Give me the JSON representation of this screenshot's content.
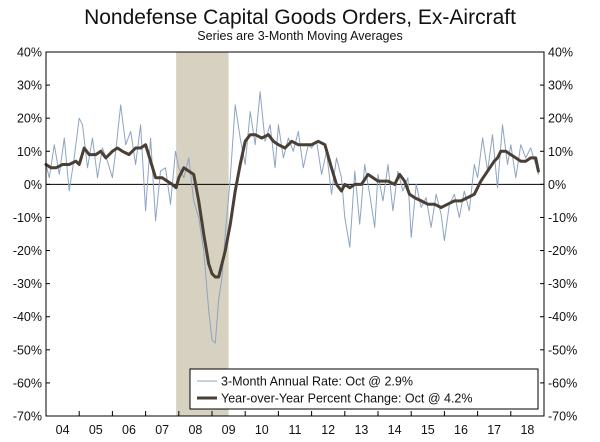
{
  "chart_data": {
    "type": "line",
    "title": "Nondefense Capital Goods Orders, Ex-Aircraft",
    "subtitle": "Series are 3-Month Moving Averages",
    "xlabel": "",
    "ylabel": "",
    "ylim": [
      -70,
      40
    ],
    "xlim": [
      2004.0,
      2019.0
    ],
    "y_ticks": [
      40,
      30,
      20,
      10,
      0,
      -10,
      -20,
      -30,
      -40,
      -50,
      -60,
      -70
    ],
    "y_tick_labels": [
      "40%",
      "30%",
      "20%",
      "10%",
      "0%",
      "-10%",
      "-20%",
      "-30%",
      "-40%",
      "-50%",
      "-60%",
      "-70%"
    ],
    "x_tick_labels": [
      "04",
      "05",
      "06",
      "07",
      "08",
      "09",
      "10",
      "11",
      "12",
      "13",
      "14",
      "15",
      "16",
      "17",
      "18"
    ],
    "x_tick_years": [
      2004,
      2005,
      2006,
      2007,
      2008,
      2009,
      2010,
      2011,
      2012,
      2013,
      2014,
      2015,
      2016,
      2017,
      2018
    ],
    "recession": {
      "start": 2007.92,
      "end": 2009.5,
      "color": "#d6d1c0"
    },
    "grid": false,
    "legend_position": "bottom-right",
    "series": [
      {
        "name": "3-Month Annual Rate: Oct @ 2.9%",
        "color": "#8da4c2",
        "x": [
          2004.0,
          2004.1,
          2004.25,
          2004.4,
          2004.55,
          2004.7,
          2004.85,
          2005.0,
          2005.1,
          2005.25,
          2005.4,
          2005.55,
          2005.7,
          2005.85,
          2006.0,
          2006.1,
          2006.25,
          2006.4,
          2006.55,
          2006.7,
          2006.85,
          2007.0,
          2007.15,
          2007.3,
          2007.45,
          2007.6,
          2007.75,
          2007.9,
          2008.0,
          2008.15,
          2008.3,
          2008.45,
          2008.6,
          2008.75,
          2008.9,
          2009.0,
          2009.1,
          2009.2,
          2009.3,
          2009.4,
          2009.55,
          2009.7,
          2009.85,
          2010.0,
          2010.15,
          2010.3,
          2010.45,
          2010.6,
          2010.75,
          2010.9,
          2011.0,
          2011.15,
          2011.3,
          2011.45,
          2011.6,
          2011.75,
          2011.9,
          2012.0,
          2012.15,
          2012.3,
          2012.45,
          2012.6,
          2012.75,
          2012.9,
          2013.0,
          2013.15,
          2013.3,
          2013.45,
          2013.6,
          2013.75,
          2013.9,
          2014.0,
          2014.15,
          2014.3,
          2014.45,
          2014.6,
          2014.75,
          2014.9,
          2015.0,
          2015.15,
          2015.3,
          2015.45,
          2015.6,
          2015.75,
          2015.9,
          2016.0,
          2016.15,
          2016.3,
          2016.45,
          2016.6,
          2016.75,
          2016.9,
          2017.0,
          2017.15,
          2017.3,
          2017.45,
          2017.6,
          2017.75,
          2017.9,
          2018.0,
          2018.15,
          2018.3,
          2018.45,
          2018.6,
          2018.75,
          2018.83
        ],
        "y": [
          6,
          2,
          12,
          3,
          14,
          -2,
          8,
          20,
          18,
          5,
          14,
          2,
          11,
          7,
          2,
          10,
          24,
          12,
          16,
          6,
          18,
          -8,
          14,
          -11,
          4,
          5,
          -6,
          10,
          5,
          2,
          8,
          -5,
          -10,
          -20,
          -38,
          -47,
          -48,
          -35,
          -28,
          -15,
          2,
          24,
          14,
          6,
          22,
          12,
          28,
          13,
          18,
          5,
          18,
          8,
          14,
          10,
          16,
          5,
          12,
          11,
          13,
          3,
          10,
          -3,
          8,
          2,
          -10,
          -19,
          4,
          -12,
          6,
          -3,
          -13,
          3,
          -5,
          6,
          -8,
          4,
          -2,
          2,
          -16,
          0,
          -7,
          -4,
          -13,
          -3,
          -9,
          -17,
          -6,
          -3,
          -10,
          -2,
          -8,
          6,
          2,
          14,
          4,
          15,
          -1,
          18,
          6,
          12,
          2,
          12,
          8,
          11,
          6,
          3
        ]
      },
      {
        "name": "Year-over-Year Percent Change: Oct @ 4.2%",
        "color": "#4a3f35",
        "x": [
          2004.0,
          2004.15,
          2004.3,
          2004.5,
          2004.7,
          2004.9,
          2005.0,
          2005.15,
          2005.3,
          2005.5,
          2005.65,
          2005.8,
          2006.0,
          2006.15,
          2006.3,
          2006.5,
          2006.7,
          2006.85,
          2007.0,
          2007.15,
          2007.3,
          2007.5,
          2007.65,
          2007.8,
          2007.92,
          2008.0,
          2008.15,
          2008.3,
          2008.45,
          2008.6,
          2008.75,
          2008.9,
          2009.0,
          2009.1,
          2009.2,
          2009.3,
          2009.4,
          2009.55,
          2009.7,
          2009.85,
          2010.0,
          2010.15,
          2010.3,
          2010.5,
          2010.7,
          2010.85,
          2011.0,
          2011.2,
          2011.4,
          2011.6,
          2011.8,
          2012.0,
          2012.2,
          2012.4,
          2012.6,
          2012.75,
          2012.9,
          2013.0,
          2013.15,
          2013.3,
          2013.5,
          2013.7,
          2013.85,
          2014.0,
          2014.15,
          2014.3,
          2014.5,
          2014.65,
          2014.8,
          2014.95,
          2015.1,
          2015.3,
          2015.5,
          2015.7,
          2015.9,
          2016.1,
          2016.3,
          2016.5,
          2016.7,
          2016.9,
          2017.1,
          2017.3,
          2017.5,
          2017.6,
          2017.7,
          2017.85,
          2018.0,
          2018.15,
          2018.3,
          2018.45,
          2018.6,
          2018.75,
          2018.83
        ],
        "y": [
          6,
          5,
          5,
          6,
          6,
          7,
          6,
          11,
          9,
          9,
          10,
          8,
          10,
          11,
          10,
          9,
          11,
          11,
          12,
          7,
          2,
          2,
          1,
          0,
          -1,
          2,
          5,
          4,
          3,
          -5,
          -15,
          -24,
          -27,
          -28,
          -28,
          -24,
          -20,
          -12,
          -2,
          6,
          13,
          15,
          15,
          14,
          15,
          13,
          12,
          11,
          13,
          12,
          12,
          12,
          13,
          12,
          5,
          0,
          -2,
          0,
          -1,
          0,
          0,
          3,
          2,
          1,
          1,
          1,
          0,
          3,
          1,
          -3,
          -4,
          -5,
          -6,
          -6,
          -7,
          -6,
          -5,
          -5,
          -4,
          -3,
          1,
          4,
          7,
          8,
          10,
          10,
          9,
          8,
          7,
          7,
          8,
          8,
          4
        ]
      }
    ]
  }
}
